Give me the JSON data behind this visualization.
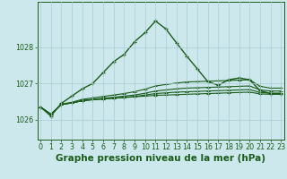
{
  "title": "Graphe pression niveau de la mer (hPa)",
  "bg_color": "#cce8ec",
  "grid_color": "#aaccd4",
  "line_color": "#1a5c1a",
  "xlim": [
    -0.3,
    23.3
  ],
  "ylim": [
    1025.45,
    1029.25
  ],
  "yticks": [
    1026,
    1027,
    1028
  ],
  "xticks": [
    0,
    1,
    2,
    3,
    4,
    5,
    6,
    7,
    8,
    9,
    10,
    11,
    12,
    13,
    14,
    15,
    16,
    17,
    18,
    19,
    20,
    21,
    22,
    23
  ],
  "flat_series": [
    [
      1026.35,
      1026.15,
      1026.42,
      1026.46,
      1026.52,
      1026.55,
      1026.57,
      1026.59,
      1026.61,
      1026.63,
      1026.65,
      1026.67,
      1026.68,
      1026.69,
      1026.7,
      1026.71,
      1026.72,
      1026.73,
      1026.74,
      1026.75,
      1026.76,
      1026.71,
      1026.7,
      1026.7
    ],
    [
      1026.35,
      1026.15,
      1026.42,
      1026.46,
      1026.52,
      1026.55,
      1026.57,
      1026.59,
      1026.62,
      1026.64,
      1026.68,
      1026.72,
      1026.74,
      1026.76,
      1026.77,
      1026.78,
      1026.79,
      1026.8,
      1026.81,
      1026.82,
      1026.83,
      1026.75,
      1026.73,
      1026.73
    ],
    [
      1026.35,
      1026.15,
      1026.42,
      1026.46,
      1026.53,
      1026.56,
      1026.59,
      1026.62,
      1026.65,
      1026.68,
      1026.73,
      1026.79,
      1026.82,
      1026.85,
      1026.87,
      1026.88,
      1026.89,
      1026.9,
      1026.91,
      1026.92,
      1026.93,
      1026.82,
      1026.79,
      1026.79
    ],
    [
      1026.35,
      1026.15,
      1026.43,
      1026.48,
      1026.56,
      1026.6,
      1026.64,
      1026.68,
      1026.72,
      1026.77,
      1026.84,
      1026.93,
      1026.97,
      1027.01,
      1027.04,
      1027.05,
      1027.06,
      1027.07,
      1027.08,
      1027.09,
      1027.1,
      1026.92,
      1026.87,
      1026.87
    ]
  ],
  "main_series": [
    1026.35,
    1026.1,
    1026.45,
    1026.65,
    1026.85,
    1027.0,
    1027.3,
    1027.6,
    1027.8,
    1028.15,
    1028.4,
    1028.72,
    1028.5,
    1028.12,
    1027.75,
    1027.4,
    1027.05,
    1026.95,
    1027.1,
    1027.15,
    1027.1,
    1026.8,
    1026.72,
    1026.72
  ],
  "title_fontsize": 7.5,
  "tick_fontsize": 5.8,
  "marker": "+"
}
